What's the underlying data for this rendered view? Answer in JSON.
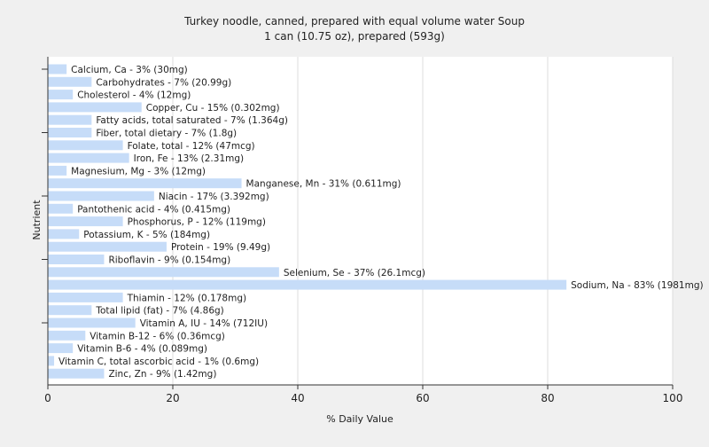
{
  "chart_data": {
    "type": "bar",
    "orientation": "horizontal",
    "title": "Turkey noodle, canned, prepared with equal volume water Soup",
    "subtitle": "1 can (10.75 oz), prepared (593g)",
    "xlabel": "% Daily Value",
    "ylabel": "Nutrient",
    "xlim": [
      0,
      100
    ],
    "xticks": [
      0,
      20,
      40,
      60,
      80,
      100
    ],
    "grid": true,
    "bar_color": "#c6dcf8",
    "categories": [
      "Calcium, Ca",
      "Carbohydrates",
      "Cholesterol",
      "Copper, Cu",
      "Fatty acids, total saturated",
      "Fiber, total dietary",
      "Folate, total",
      "Iron, Fe",
      "Magnesium, Mg",
      "Manganese, Mn",
      "Niacin",
      "Pantothenic acid",
      "Phosphorus, P",
      "Potassium, K",
      "Protein",
      "Riboflavin",
      "Selenium, Se",
      "Sodium, Na",
      "Thiamin",
      "Total lipid (fat)",
      "Vitamin A, IU",
      "Vitamin B-12",
      "Vitamin B-6",
      "Vitamin C, total ascorbic acid",
      "Zinc, Zn"
    ],
    "values": [
      3,
      7,
      4,
      15,
      7,
      7,
      12,
      13,
      3,
      31,
      17,
      4,
      12,
      5,
      19,
      9,
      37,
      83,
      12,
      7,
      14,
      6,
      4,
      1,
      9
    ],
    "labels": [
      "Calcium, Ca - 3% (30mg)",
      "Carbohydrates - 7% (20.99g)",
      "Cholesterol - 4% (12mg)",
      "Copper, Cu - 15% (0.302mg)",
      "Fatty acids, total saturated - 7% (1.364g)",
      "Fiber, total dietary - 7% (1.8g)",
      "Folate, total - 12% (47mcg)",
      "Iron, Fe - 13% (2.31mg)",
      "Magnesium, Mg - 3% (12mg)",
      "Manganese, Mn - 31% (0.611mg)",
      "Niacin - 17% (3.392mg)",
      "Pantothenic acid - 4% (0.415mg)",
      "Phosphorus, P - 12% (119mg)",
      "Potassium, K - 5% (184mg)",
      "Protein - 19% (9.49g)",
      "Riboflavin - 9% (0.154mg)",
      "Selenium, Se - 37% (26.1mcg)",
      "Sodium, Na - 83% (1981mg)",
      "Thiamin - 12% (0.178mg)",
      "Total lipid (fat) - 7% (4.86g)",
      "Vitamin A, IU - 14% (712IU)",
      "Vitamin B-12 - 6% (0.36mcg)",
      "Vitamin B-6 - 4% (0.089mg)",
      "Vitamin C, total ascorbic acid - 1% (0.6mg)",
      "Zinc, Zn - 9% (1.42mg)"
    ]
  }
}
